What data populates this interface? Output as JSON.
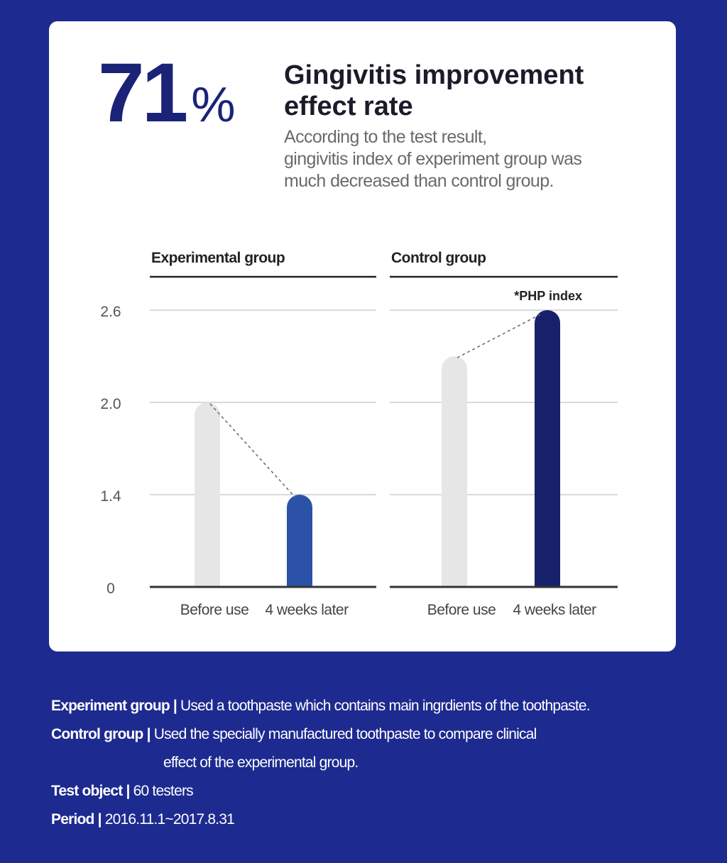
{
  "headline": {
    "stat_number": "71",
    "stat_unit": "%",
    "title_line1": "Gingivitis improvement",
    "title_line2": "effect rate",
    "desc_line1": "According to the test result,",
    "desc_line2": "gingivitis index of experiment group was",
    "desc_line3": "much decreased than control group."
  },
  "chart_data": {
    "type": "bar",
    "ylim": [
      0,
      2.6
    ],
    "yticks": [
      "0",
      "1.4",
      "2.0",
      "2.6"
    ],
    "annotation": "*PHP index",
    "grid": true,
    "panels": [
      {
        "title": "Experimental group",
        "categories": [
          "Before use",
          "4 weeks later"
        ],
        "values": [
          2.0,
          1.4
        ],
        "colors": [
          "#e6e6e6",
          "#2c52a8"
        ]
      },
      {
        "title": "Control group",
        "categories": [
          "Before use",
          "4 weeks later"
        ],
        "values": [
          2.3,
          2.6
        ],
        "colors": [
          "#e6e6e6",
          "#17206b"
        ]
      }
    ]
  },
  "footer": {
    "experiment_label": "Experiment group |",
    "experiment_text": " Used a toothpaste which contains main ingrdients of the toothpaste.",
    "control_label": "Control group |",
    "control_text": " Used the specially manufactured toothpaste to compare clinical",
    "control_text_cont": "effect of the experimental group.",
    "test_object_label": "Test object |",
    "test_object_text": " 60 testers",
    "period_label": "Period |",
    "period_text": " 2016.11.1~2017.8.31"
  },
  "colors": {
    "background": "#1d2a8f",
    "card": "#ffffff",
    "accent": "#1a2378"
  }
}
